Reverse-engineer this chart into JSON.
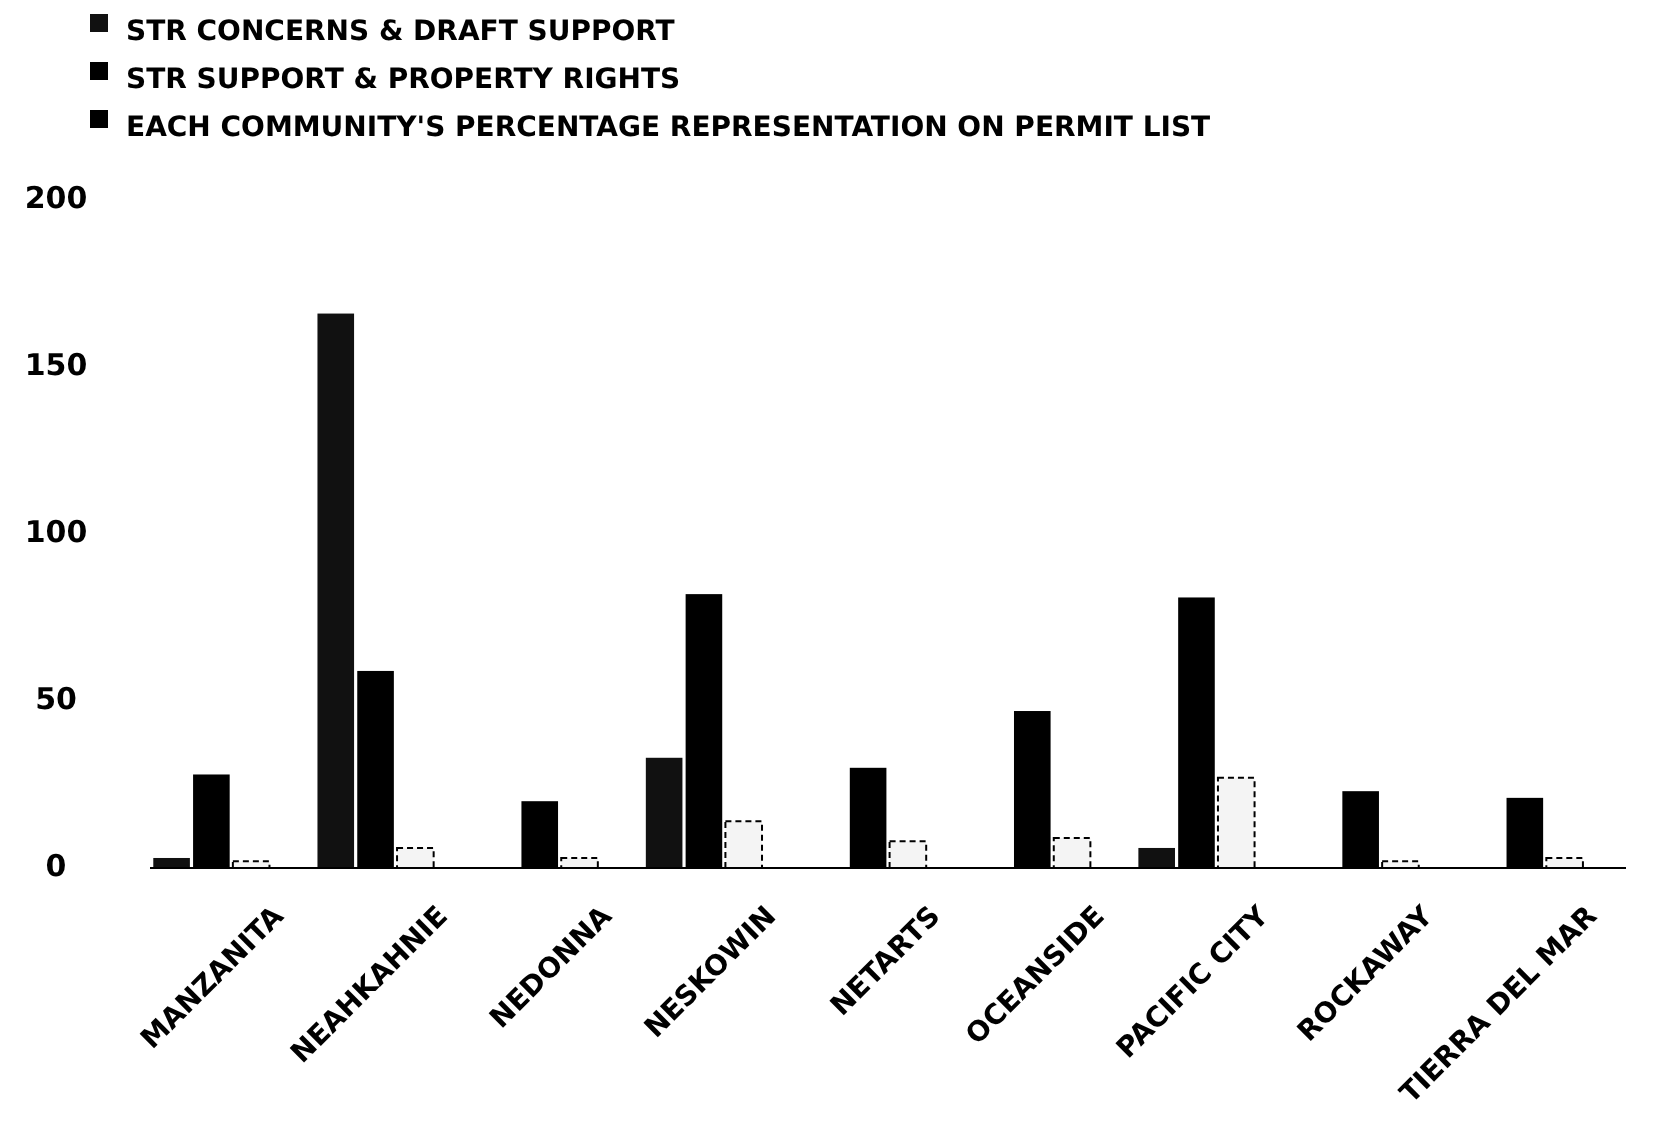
{
  "chart_data": {
    "type": "bar",
    "categories": [
      "MANZANITA",
      "NEAHKAHNIE",
      "NEDONNA",
      "NESKOWIN",
      "NETARTS",
      "OCEANSIDE",
      "PACIFIC CITY",
      "ROCKAWAY",
      "TIERRA DEL MAR"
    ],
    "series": [
      {
        "name": "STR CONCERNS & DRAFT SUPPORT",
        "color": "#111111",
        "values": [
          3,
          166,
          0,
          33,
          0,
          0,
          6,
          0,
          0
        ]
      },
      {
        "name": "STR SUPPORT & PROPERTY RIGHTS",
        "color": "#000000",
        "values": [
          28,
          59,
          20,
          82,
          30,
          47,
          81,
          23,
          21
        ]
      },
      {
        "name": "EACH COMMUNITY'S PERCENTAGE REPRESENTATION ON PERMIT LIST",
        "color": "#f4f4f4",
        "values": [
          2,
          6,
          3,
          14,
          8,
          9,
          27,
          2,
          3
        ]
      }
    ],
    "ylim": [
      0,
      200
    ],
    "yticks": [
      0,
      50,
      100,
      150,
      200
    ],
    "legend": "top left"
  }
}
